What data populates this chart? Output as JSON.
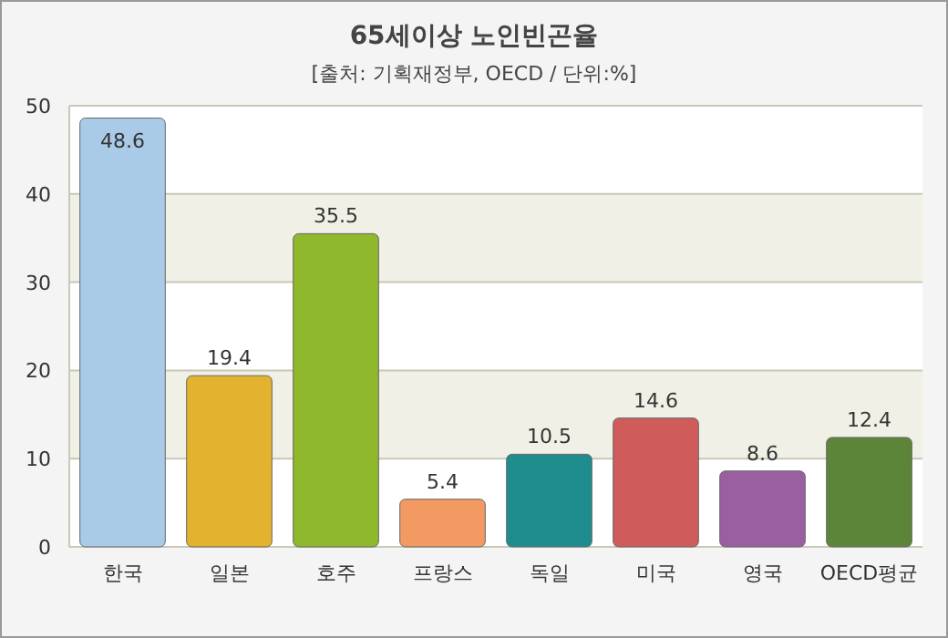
{
  "chart_data": {
    "type": "bar",
    "title": "65세이상 노인빈곤율",
    "subtitle": "[출처: 기획재정부, OECD / 단위:%]",
    "categories": [
      "한국",
      "일본",
      "호주",
      "프랑스",
      "독일",
      "미국",
      "영국",
      "OECD평균"
    ],
    "values": [
      48.6,
      19.4,
      35.5,
      5.4,
      10.5,
      14.6,
      8.6,
      12.4
    ],
    "colors": [
      "#a9cbe8",
      "#e3b22f",
      "#8fb82c",
      "#f29a62",
      "#1f8d8d",
      "#cf5b5b",
      "#9a5fa0",
      "#5c853a"
    ],
    "ylim": [
      0,
      50
    ],
    "yticks": [
      0,
      10,
      20,
      30,
      40,
      50
    ],
    "grid": "y",
    "data_labels": true
  }
}
